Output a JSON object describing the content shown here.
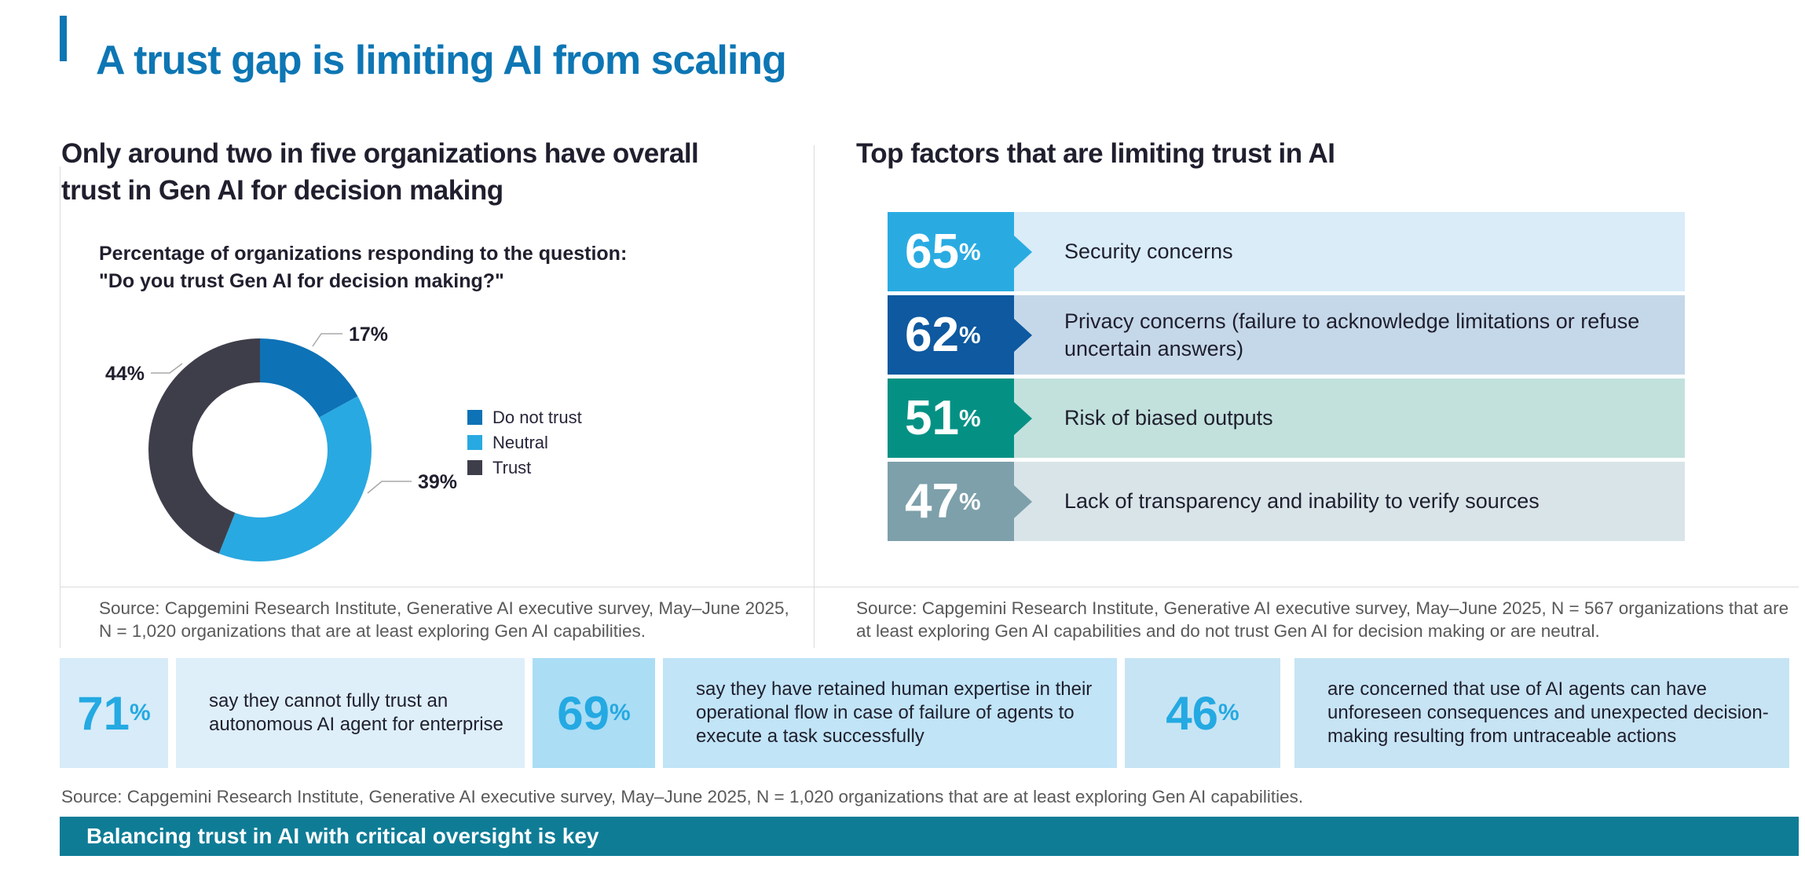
{
  "page_title": "A trust gap is limiting AI from scaling",
  "colors": {
    "title_blue": "#0D76B4",
    "heading_dark": "#1F1F2E",
    "grid_line": "#DBDBDB",
    "source_gray": "#595959",
    "leader_gray": "#A8A8A8",
    "banner_teal": "#0F7C96",
    "stat_value_cyan": "#24A9E2"
  },
  "left_panel": {
    "heading": "Only around two in five organizations have overall trust in Gen AI for decision making",
    "subtitle_line1": "Percentage of organizations responding to the question:",
    "subtitle_line2": "\"Do you trust Gen AI for decision making?\"",
    "source": "Source: Capgemini Research Institute, Generative AI executive survey, May–June 2025, N = 1,020 organizations that are at least exploring Gen AI capabilities."
  },
  "right_panel": {
    "heading": "Top factors that are limiting trust in AI",
    "source": "Source: Capgemini Research Institute, Generative AI executive survey, May–June 2025, N = 567 organizations that are at least exploring Gen AI capabilities and do not trust Gen AI for decision making or are neutral."
  },
  "chart_data": [
    {
      "type": "pie",
      "subtype": "donut",
      "title": "Percentage of organizations responding to the question: \"Do you trust Gen AI for decision making?\"",
      "start": "top",
      "direction": "clockwise",
      "legend_position": "right-middle",
      "slices": [
        {
          "label": "Do not trust",
          "value": 17,
          "data_label": "17%",
          "color": "#0E72B6"
        },
        {
          "label": "Neutral",
          "value": 39,
          "data_label": "39%",
          "color": "#29A9E1"
        },
        {
          "label": "Trust",
          "value": 44,
          "data_label": "44%",
          "color": "#3E3E4B"
        }
      ]
    },
    {
      "type": "bar",
      "orientation": "horizontal",
      "title": "Top factors that are limiting trust in AI",
      "xlim": [
        0,
        100
      ],
      "categories": [
        "Security concerns",
        "Privacy concerns (failure to acknowledge limitations or refuse uncertain answers)",
        "Risk of biased outputs",
        "Lack of transparency and inability to verify sources"
      ],
      "values": [
        65,
        62,
        51,
        47
      ],
      "value_labels": [
        "65",
        "62",
        "51",
        "47"
      ],
      "bar_colors": [
        "#29ABE2",
        "#0E59A0",
        "#049184",
        "#7DA0AB"
      ],
      "row_bg_colors": [
        "#D9ECF8",
        "#C5D8E9",
        "#C2E1DC",
        "#D9E4E8"
      ]
    }
  ],
  "key_stats": {
    "items": [
      {
        "value": "71",
        "text": "say they cannot fully trust an autonomous AI agent for enterprise",
        "num_bg": "#D7EBF8",
        "text_bg": "#DEEFFA"
      },
      {
        "value": "69",
        "text": "say they have retained human expertise in their operational flow in case of failure of agents to execute a task successfully",
        "num_bg": "#ABDDF5",
        "text_bg": "#C1E4F7"
      },
      {
        "value": "46",
        "text": "are concerned that use of AI agents can have unforeseen consequences and unexpected decision-making resulting from untraceable actions",
        "num_bg": "#C7E4F4",
        "text_bg": "#C7E4F4"
      }
    ],
    "source": "Source: Capgemini Research Institute, Generative AI executive survey, May–June 2025, N = 1,020 organizations that are at least exploring Gen AI capabilities."
  },
  "strings": {
    "percent_sign": "%"
  },
  "banner": {
    "text": "Balancing trust in AI with critical oversight is key"
  }
}
